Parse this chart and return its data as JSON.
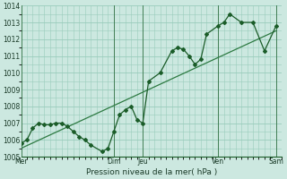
{
  "xlabel": "Pression niveau de la mer( hPa )",
  "bg_color": "#cce8e0",
  "grid_color": "#99ccbb",
  "line_color": "#1a5c28",
  "trend_color": "#2d7a42",
  "ylim": [
    1005,
    1014
  ],
  "yticks": [
    1005,
    1006,
    1007,
    1008,
    1009,
    1010,
    1011,
    1012,
    1013,
    1014
  ],
  "day_labels": [
    "Mer",
    "Dim",
    "Jeu",
    "Ven",
    "Sam"
  ],
  "day_positions": [
    0.0,
    8.0,
    10.5,
    17.0,
    22.0
  ],
  "vline_positions": [
    0.0,
    8.0,
    10.5,
    17.0,
    22.0
  ],
  "forecast_x": [
    0,
    0.5,
    1.0,
    1.5,
    2.0,
    2.5,
    3.0,
    3.5,
    4.0,
    4.5,
    5.0,
    5.5,
    6.0,
    7.0,
    7.5,
    8.0,
    8.5,
    9.0,
    9.5,
    10.0,
    10.5,
    11.0,
    12.0,
    13.0,
    13.5,
    14.0,
    14.5,
    15.0,
    15.5,
    16.0,
    17.0,
    17.5,
    18.0,
    19.0,
    20.0,
    21.0,
    22.0
  ],
  "forecast_y": [
    1005.8,
    1006.0,
    1006.7,
    1007.0,
    1006.9,
    1006.9,
    1007.0,
    1007.0,
    1006.8,
    1006.5,
    1006.2,
    1006.0,
    1005.7,
    1005.3,
    1005.5,
    1006.5,
    1007.5,
    1007.8,
    1008.0,
    1007.2,
    1007.0,
    1009.5,
    1010.0,
    1011.3,
    1011.5,
    1011.4,
    1011.0,
    1010.5,
    1010.8,
    1012.3,
    1012.8,
    1013.0,
    1013.5,
    1013.0,
    1013.0,
    1011.3,
    1012.8
  ],
  "trend_x": [
    0,
    22
  ],
  "trend_y": [
    1005.5,
    1012.5
  ],
  "xlim": [
    0,
    22.5
  ]
}
